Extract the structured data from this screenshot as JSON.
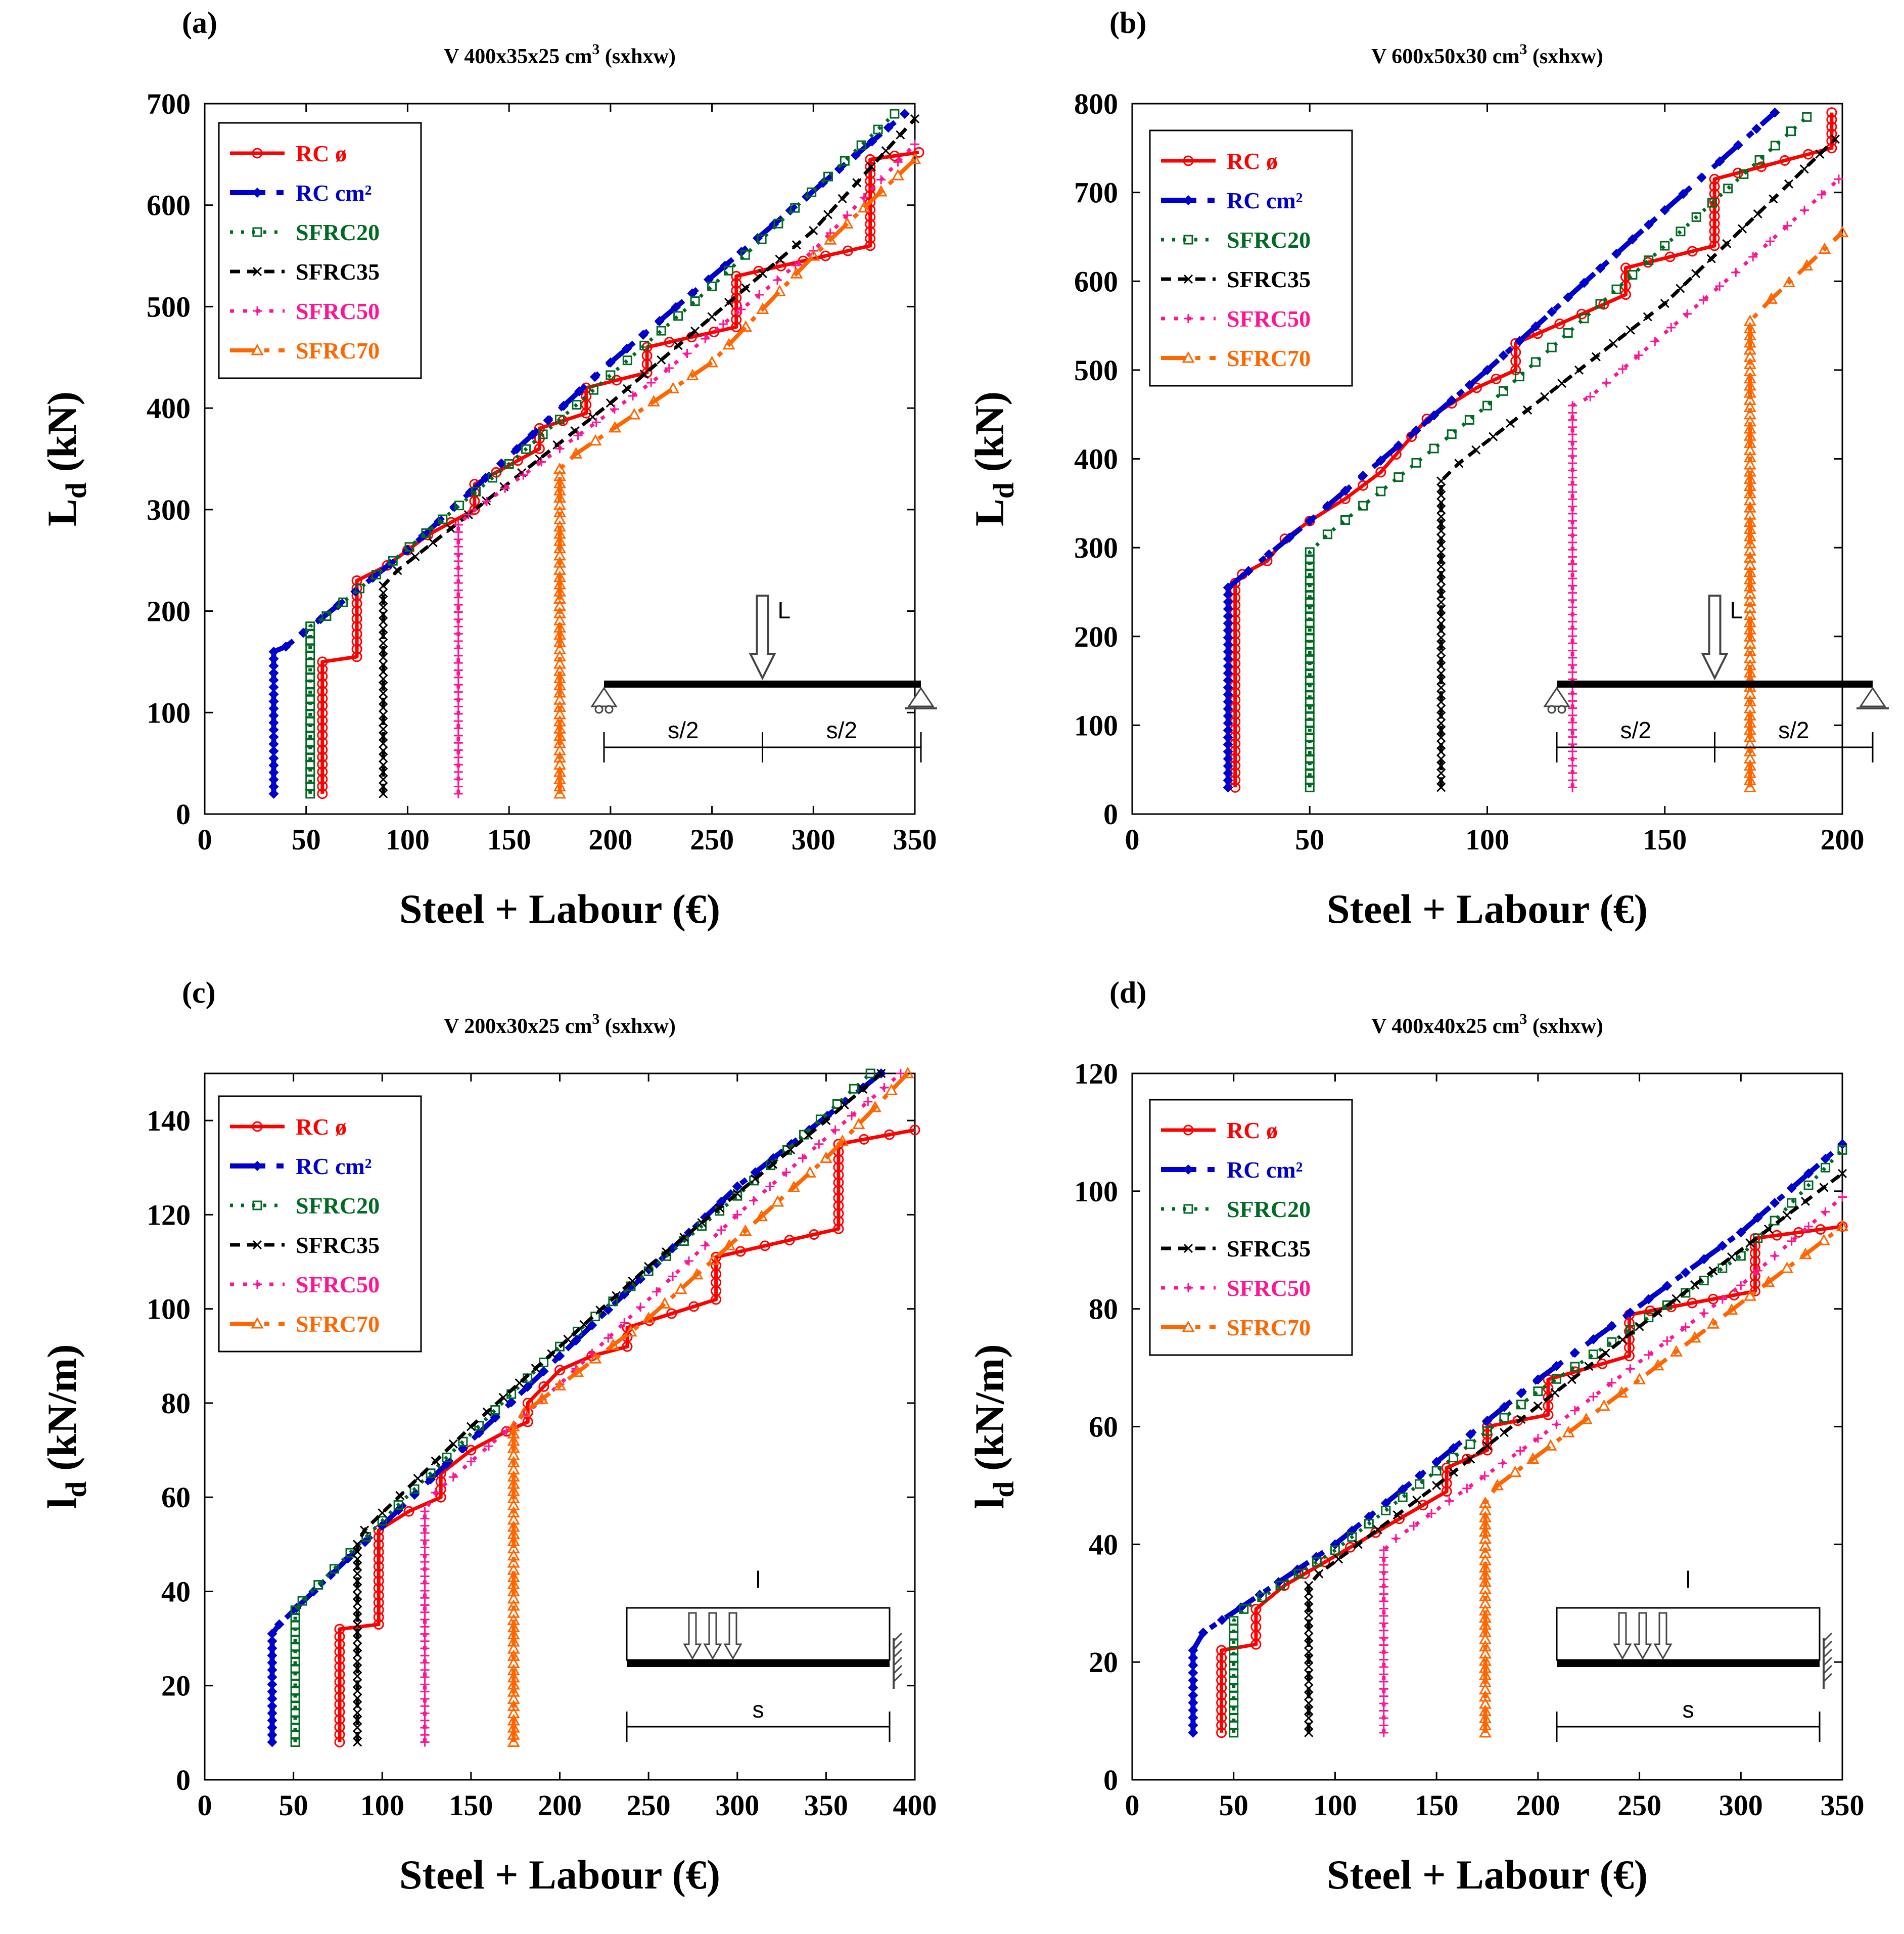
{
  "colors": {
    "RC ø": "#ff0000",
    "RC cm²": "#0000cc",
    "SFRC20": "#006a22",
    "SFRC35": "#000000",
    "SFRC50": "#ff1493",
    "SFRC70": "#ff6600"
  },
  "chart_data": [
    {
      "type": "line",
      "panel_label": "(a)",
      "title": "V 400x35x25 cm³ (sxhxw)",
      "title_main": "V 400x35x25 cm",
      "title_sup": "3",
      "title_tail": " (sxhxw)",
      "xlabel": "Steel + Labour (€)",
      "ylabel": "Ld (kN)",
      "ylabel_main": "L",
      "ylabel_sub": "d",
      "ylabel_tail": " (kN)",
      "xlim": [
        0,
        350
      ],
      "ylim": [
        0,
        700
      ],
      "xticks": [
        0,
        50,
        100,
        150,
        200,
        250,
        300,
        350
      ],
      "yticks": [
        0,
        100,
        200,
        300,
        400,
        500,
        600,
        700
      ],
      "legend": [
        "RC ø",
        "RC cm²",
        "SFRC20",
        "SFRC35",
        "SFRC50",
        "SFRC70"
      ],
      "schematic": {
        "kind": "point",
        "load_label": "L",
        "span_labels": [
          "s/2",
          "s/2"
        ]
      },
      "series": [
        {
          "name": "RC ø",
          "x": [
            58,
            58,
            75,
            75,
            90,
            110,
            133,
            133,
            165,
            165,
            188,
            188,
            218,
            218,
            262,
            262,
            328,
            328,
            352
          ],
          "y": [
            20,
            150,
            155,
            230,
            245,
            275,
            300,
            325,
            360,
            380,
            395,
            420,
            435,
            460,
            480,
            530,
            560,
            645,
            652
          ]
        },
        {
          "name": "RC cm²",
          "x": [
            34,
            34,
            40,
            100,
            200,
            345
          ],
          "y": [
            20,
            160,
            165,
            260,
            445,
            690
          ]
        },
        {
          "name": "SFRC20",
          "x": [
            52,
            52,
            60,
            150,
            250,
            340
          ],
          "y": [
            20,
            185,
            195,
            345,
            520,
            690
          ]
        },
        {
          "name": "SFRC35",
          "x": [
            88,
            88,
            95,
            200,
            300,
            350
          ],
          "y": [
            20,
            225,
            240,
            405,
            575,
            685
          ]
        },
        {
          "name": "SFRC50",
          "x": [
            125,
            125,
            130,
            220,
            300,
            350
          ],
          "y": [
            20,
            285,
            295,
            425,
            555,
            660
          ]
        },
        {
          "name": "SFRC70",
          "x": [
            175,
            175,
            183,
            250,
            300,
            350
          ],
          "y": [
            20,
            340,
            355,
            445,
            550,
            645
          ]
        }
      ]
    },
    {
      "type": "line",
      "panel_label": "(b)",
      "title": "V 600x50x30 cm³ (sxhxw)",
      "title_main": "V 600x50x30 cm",
      "title_sup": "3",
      "title_tail": " (sxhxw)",
      "xlabel": "Steel + Labour (€)",
      "ylabel": "Ld (kN)",
      "ylabel_main": "L",
      "ylabel_sub": "d",
      "ylabel_tail": " (kN)",
      "xlim": [
        0,
        200
      ],
      "ylim": [
        0,
        800
      ],
      "xticks": [
        0,
        50,
        100,
        150,
        200
      ],
      "yticks": [
        0,
        100,
        200,
        300,
        400,
        500,
        600,
        700,
        800
      ],
      "legend": [
        "RC ø",
        "RC cm²",
        "SFRC20",
        "SFRC35",
        "SFRC50",
        "SFRC70"
      ],
      "schematic": {
        "kind": "point",
        "load_label": "L",
        "span_labels": [
          "s/2",
          "s/2"
        ]
      },
      "series": [
        {
          "name": "RC ø",
          "x": [
            29,
            29,
            31,
            38,
            43,
            50,
            60,
            70,
            83,
            97,
            108,
            108,
            139,
            139,
            164,
            164,
            197,
            197
          ],
          "y": [
            30,
            260,
            270,
            285,
            310,
            330,
            355,
            385,
            445,
            480,
            500,
            530,
            585,
            615,
            640,
            715,
            750,
            790
          ]
        },
        {
          "name": "RC cm²",
          "x": [
            27,
            27,
            50,
            100,
            150,
            181
          ],
          "y": [
            30,
            255,
            330,
            500,
            680,
            790
          ]
        },
        {
          "name": "SFRC20",
          "x": [
            50,
            50,
            55,
            100,
            150,
            190
          ],
          "y": [
            30,
            295,
            315,
            460,
            640,
            785
          ]
        },
        {
          "name": "SFRC35",
          "x": [
            87,
            87,
            92,
            150,
            198
          ],
          "y": [
            30,
            375,
            395,
            575,
            760
          ]
        },
        {
          "name": "SFRC50",
          "x": [
            124,
            124,
            129,
            170,
            199
          ],
          "y": [
            30,
            460,
            470,
            610,
            715
          ]
        },
        {
          "name": "SFRC70",
          "x": [
            174,
            174,
            180,
            200
          ],
          "y": [
            30,
            555,
            580,
            655
          ]
        }
      ]
    },
    {
      "type": "line",
      "panel_label": "(c)",
      "title": "V 200x30x25 cm³ (sxhxw)",
      "title_main": "V 200x30x25 cm",
      "title_sup": "3",
      "title_tail": " (sxhxw)",
      "xlabel": "Steel + Labour (€)",
      "ylabel": "ld (kN/m)",
      "ylabel_main": "l",
      "ylabel_sub": "d",
      "ylabel_tail": " (kN/m)",
      "xlim": [
        0,
        400
      ],
      "ylim": [
        0,
        150
      ],
      "xticks": [
        0,
        50,
        100,
        150,
        200,
        250,
        300,
        350,
        400
      ],
      "yticks": [
        0,
        20,
        40,
        60,
        80,
        100,
        120,
        140
      ],
      "legend": [
        "RC ø",
        "RC cm²",
        "SFRC20",
        "SFRC35",
        "SFRC50",
        "SFRC70"
      ],
      "schematic": {
        "kind": "distributed",
        "load_label": "l",
        "span_labels": [
          "s"
        ]
      },
      "series": [
        {
          "name": "RC ø",
          "x": [
            76,
            76,
            98,
            98,
            115,
            133,
            133,
            150,
            170,
            182,
            182,
            200,
            218,
            238,
            238,
            288,
            288,
            357,
            357,
            400
          ],
          "y": [
            8,
            32,
            33,
            53,
            57,
            60,
            65,
            70,
            74,
            76,
            80,
            87,
            90,
            92,
            96,
            102,
            111,
            117,
            135,
            138
          ]
        },
        {
          "name": "RC cm²",
          "x": [
            38,
            38,
            42,
            100,
            200,
            300,
            381
          ],
          "y": [
            8,
            31,
            33,
            54,
            90,
            126,
            150
          ]
        },
        {
          "name": "SFRC20",
          "x": [
            51,
            51,
            55,
            100,
            200,
            300,
            375
          ],
          "y": [
            8,
            36,
            38,
            55,
            92,
            124,
            150
          ]
        },
        {
          "name": "SFRC35",
          "x": [
            86,
            86,
            90,
            150,
            250,
            350,
            381
          ],
          "y": [
            8,
            50,
            53,
            75,
            109,
            140,
            150
          ]
        },
        {
          "name": "SFRC50",
          "x": [
            124,
            124,
            130,
            200,
            300,
            392
          ],
          "y": [
            8,
            57,
            61,
            84,
            120,
            150
          ]
        },
        {
          "name": "SFRC70",
          "x": [
            174,
            174,
            180,
            250,
            350,
            396
          ],
          "y": [
            8,
            75,
            78,
            98,
            132,
            150
          ]
        }
      ]
    },
    {
      "type": "line",
      "panel_label": "(d)",
      "title": "V 400x40x25 cm³ (sxhxw)",
      "title_main": "V 400x40x25 cm",
      "title_sup": "3",
      "title_tail": " (sxhxw)",
      "xlabel": "Steel + Labour (€)",
      "ylabel": "ld (kN/m)",
      "ylabel_main": "l",
      "ylabel_sub": "d",
      "ylabel_tail": " (kN/m)",
      "xlim": [
        0,
        350
      ],
      "ylim": [
        0,
        120
      ],
      "xticks": [
        0,
        50,
        100,
        150,
        200,
        250,
        300,
        350
      ],
      "yticks": [
        0,
        20,
        40,
        60,
        80,
        100,
        120
      ],
      "legend": [
        "RC ø",
        "RC cm²",
        "SFRC20",
        "SFRC35",
        "SFRC50",
        "SFRC70"
      ],
      "schematic": {
        "kind": "distributed",
        "load_label": "l",
        "span_labels": [
          "s"
        ]
      },
      "series": [
        {
          "name": "RC ø",
          "x": [
            44,
            44,
            61,
            61,
            75,
            95,
            120,
            155,
            155,
            175,
            175,
            205,
            205,
            245,
            245,
            307,
            307,
            350
          ],
          "y": [
            8,
            22,
            23,
            29,
            33,
            37,
            42,
            49,
            53,
            56,
            60,
            62,
            68,
            72,
            79,
            83,
            92,
            94
          ]
        },
        {
          "name": "RC cm²",
          "x": [
            30,
            30,
            35,
            100,
            200,
            300,
            350
          ],
          "y": [
            8,
            22,
            25,
            40,
            68,
            93,
            108
          ]
        },
        {
          "name": "SFRC20",
          "x": [
            50,
            50,
            55,
            100,
            200,
            300,
            350
          ],
          "y": [
            8,
            27,
            29,
            39,
            66,
            89,
            107
          ]
        },
        {
          "name": "SFRC35",
          "x": [
            87,
            87,
            92,
            150,
            250,
            350
          ],
          "y": [
            8,
            33,
            35,
            50,
            77,
            103
          ]
        },
        {
          "name": "SFRC50",
          "x": [
            124,
            124,
            130,
            200,
            300,
            350
          ],
          "y": [
            8,
            39,
            41,
            58,
            84,
            99
          ]
        },
        {
          "name": "SFRC70",
          "x": [
            174,
            174,
            180,
            250,
            350
          ],
          "y": [
            8,
            47,
            50,
            68,
            94
          ]
        }
      ]
    }
  ]
}
